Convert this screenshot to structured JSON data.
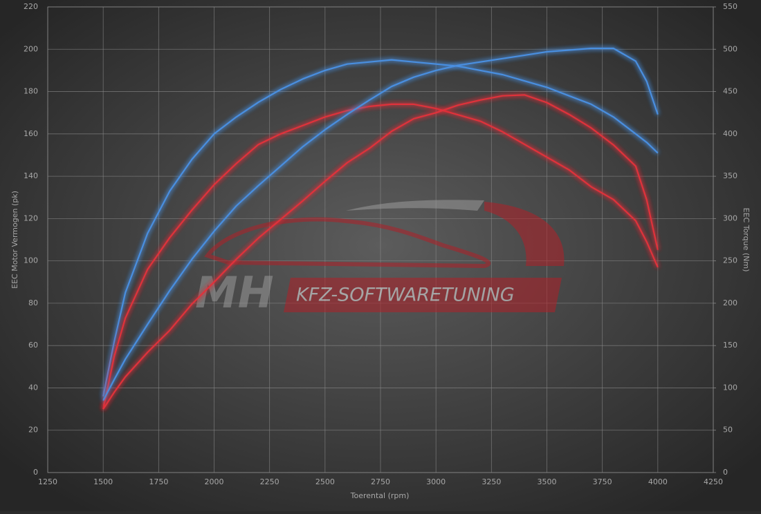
{
  "chart_data": {
    "type": "line",
    "x_label": "Toerental (rpm)",
    "y_label": "EEC Motor Vermogen (pk)",
    "y2_label": "EEC Torque (Nm)",
    "watermark": {
      "brand": "MH",
      "text": "KFZ-SOFTWARETUNING"
    },
    "x": [
      1500,
      1550,
      1600,
      1700,
      1800,
      1900,
      2000,
      2100,
      2200,
      2300,
      2400,
      2500,
      2600,
      2700,
      2800,
      2900,
      3000,
      3100,
      3200,
      3300,
      3400,
      3500,
      3600,
      3700,
      3800,
      3900,
      3950,
      4000
    ],
    "series": [
      {
        "color": "#4a8fe0",
        "values": [
          36,
          62,
          85,
          113,
          133,
          148,
          160,
          168,
          175,
          181,
          186,
          190,
          193,
          194,
          195,
          194,
          193,
          192,
          190,
          188,
          185,
          182,
          178,
          174,
          168,
          160,
          156,
          151
        ]
      },
      {
        "color": "#e0303a",
        "values": [
          30,
          55,
          73,
          96,
          111,
          124,
          136,
          146,
          155,
          160,
          164,
          168,
          171,
          173,
          174,
          174,
          172,
          169,
          166,
          161,
          155,
          149,
          143,
          135,
          129,
          119,
          109,
          97
        ]
      },
      {
        "color": "#4a8fe0",
        "axis": "y2",
        "values": [
          85,
          110,
          134,
          175,
          215,
          252,
          285,
          315,
          339,
          362,
          385,
          405,
          423,
          440,
          456,
          467,
          475,
          481,
          485,
          489,
          493,
          497,
          499,
          501,
          501,
          486,
          462,
          423
        ]
      },
      {
        "color": "#e0303a",
        "axis": "y2",
        "values": [
          75,
          95,
          113,
          142,
          168,
          199,
          225,
          252,
          277,
          299,
          321,
          344,
          366,
          383,
          403,
          418,
          425,
          434,
          440,
          445,
          446,
          437,
          423,
          407,
          387,
          362,
          322,
          263
        ]
      }
    ],
    "xlim": [
      1250,
      4250
    ],
    "xticks": [
      1250,
      1500,
      1750,
      2000,
      2250,
      2500,
      2750,
      3000,
      3250,
      3500,
      3750,
      4000,
      4250
    ],
    "ylim": [
      0,
      220
    ],
    "yticks": [
      0,
      20,
      40,
      60,
      80,
      100,
      120,
      140,
      160,
      180,
      200,
      220
    ],
    "y2lim": [
      0,
      550
    ],
    "y2ticks": [
      0,
      50,
      100,
      150,
      200,
      250,
      300,
      350,
      400,
      450,
      500,
      550
    ],
    "grid": true
  }
}
